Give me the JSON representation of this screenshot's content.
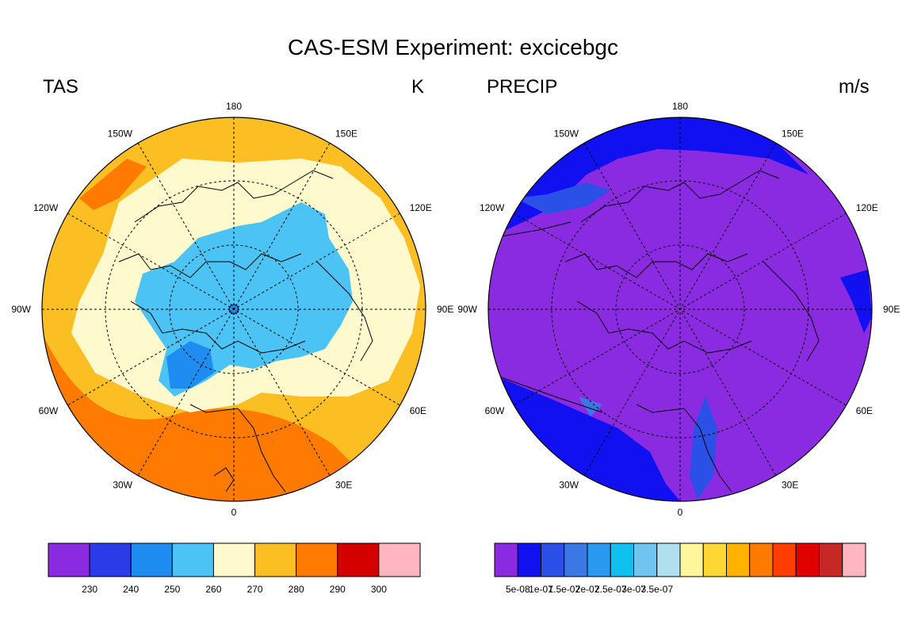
{
  "figure": {
    "title": "CAS-ESM Experiment: excicebgc",
    "panels": [
      {
        "id": "tas",
        "variable": "TAS",
        "units": "K",
        "longitude_labels": [
          "180",
          "150E",
          "120E",
          "90E",
          "60E",
          "30E",
          "0",
          "30W",
          "60W",
          "90W",
          "120W",
          "150W"
        ],
        "colorbar": {
          "tick_labels": [
            "230",
            "240",
            "250",
            "260",
            "270",
            "280",
            "290",
            "300"
          ],
          "colors": [
            "#8a2be2",
            "#2a3ce8",
            "#1e8cf0",
            "#4cc3f5",
            "#fffacd",
            "#fbbf24",
            "#ff7a00",
            "#d40000",
            "#ffb6c1"
          ]
        }
      },
      {
        "id": "precip",
        "variable": "PRECIP",
        "units": "m/s",
        "longitude_labels": [
          "180",
          "150E",
          "120E",
          "90E",
          "60E",
          "30E",
          "0",
          "30W",
          "60W",
          "90W",
          "120W",
          "150W"
        ],
        "colorbar": {
          "tick_labels": [
            "5e-08",
            "1e-07",
            "1.5e-07",
            "2e-07",
            "2.5e-07",
            "3e-07",
            "3.5e-07"
          ],
          "colors": [
            "#8a2be2",
            "#1010f0",
            "#2a50e8",
            "#3a78e6",
            "#2a9af0",
            "#10c0f0",
            "#70c4f0",
            "#b0e0f0",
            "#fff59a",
            "#fdd835",
            "#ffb300",
            "#ff7a00",
            "#ff3d00",
            "#e00000",
            "#c62828",
            "#ffb6c1"
          ]
        }
      }
    ]
  }
}
